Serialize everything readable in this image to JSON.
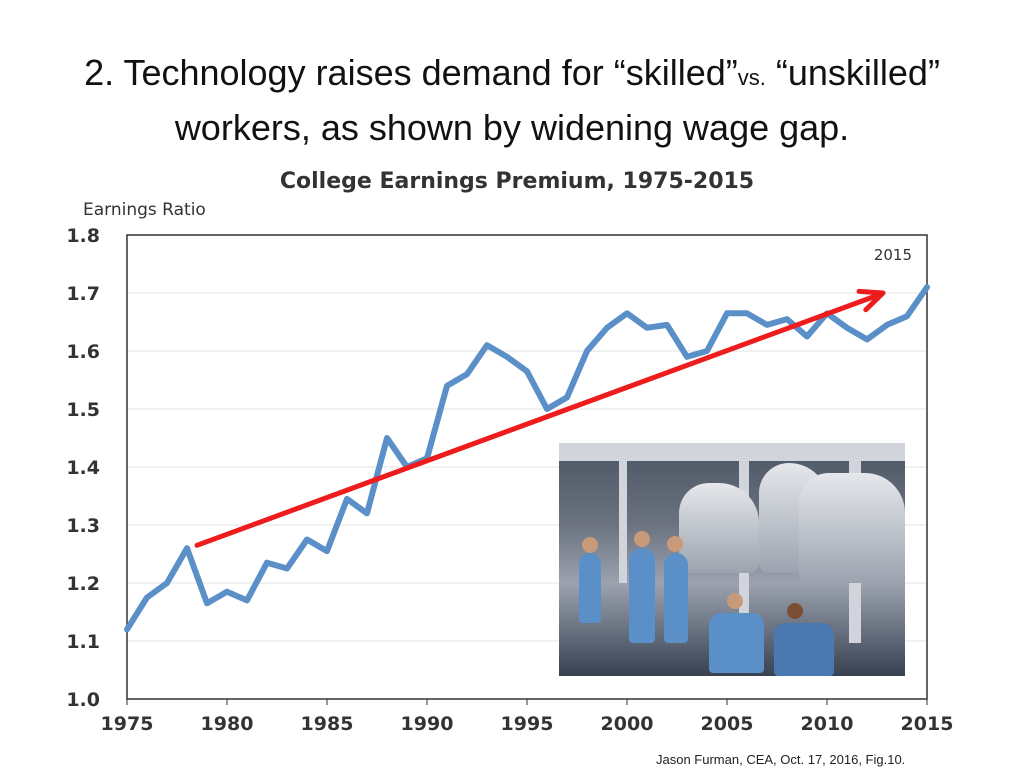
{
  "slide": {
    "title_part1": "2. Technology raises demand for “skilled”",
    "title_vs": "vs.",
    "title_part2": "“unskilled”",
    "title_line2": "workers, as shown by widening wage gap.",
    "source": "Jason Furman, CEA, Oct. 17, 2016, Fig.10.",
    "photo_icon": "factory-assembly-line-photo"
  },
  "chart_data": {
    "type": "line",
    "title": "College Earnings Premium, 1975-2015",
    "ylabel": "Earnings Ratio",
    "xlabel": "",
    "annotation": "2015",
    "xlim": [
      1975,
      2015
    ],
    "ylim": [
      1.0,
      1.8
    ],
    "x_ticks": [
      "1975",
      "1980",
      "1985",
      "1990",
      "1995",
      "2000",
      "2005",
      "2010",
      "2015"
    ],
    "y_ticks": [
      "1.0",
      "1.1",
      "1.2",
      "1.3",
      "1.4",
      "1.5",
      "1.6",
      "1.7",
      "1.8"
    ],
    "grid": true,
    "series": [
      {
        "color": "#5b8fc8",
        "x": [
          1975,
          1976,
          1977,
          1978,
          1979,
          1980,
          1981,
          1982,
          1983,
          1984,
          1985,
          1986,
          1987,
          1988,
          1989,
          1990,
          1991,
          1992,
          1993,
          1994,
          1995,
          1996,
          1997,
          1998,
          1999,
          2000,
          2001,
          2002,
          2003,
          2004,
          2005,
          2006,
          2007,
          2008,
          2009,
          2010,
          2011,
          2012,
          2013,
          2014,
          2015
        ],
        "y": [
          1.12,
          1.175,
          1.2,
          1.26,
          1.165,
          1.185,
          1.17,
          1.235,
          1.225,
          1.275,
          1.255,
          1.345,
          1.32,
          1.45,
          1.4,
          1.415,
          1.54,
          1.56,
          1.61,
          1.59,
          1.565,
          1.5,
          1.52,
          1.6,
          1.64,
          1.665,
          1.64,
          1.645,
          1.59,
          1.6,
          1.665,
          1.665,
          1.645,
          1.655,
          1.625,
          1.665,
          1.64,
          1.62,
          1.645,
          1.66,
          1.71
        ]
      }
    ],
    "trend_arrow": {
      "color": "#ee1c1c",
      "start": [
        1978.5,
        1.265
      ],
      "end": [
        2012.8,
        1.7
      ]
    }
  }
}
